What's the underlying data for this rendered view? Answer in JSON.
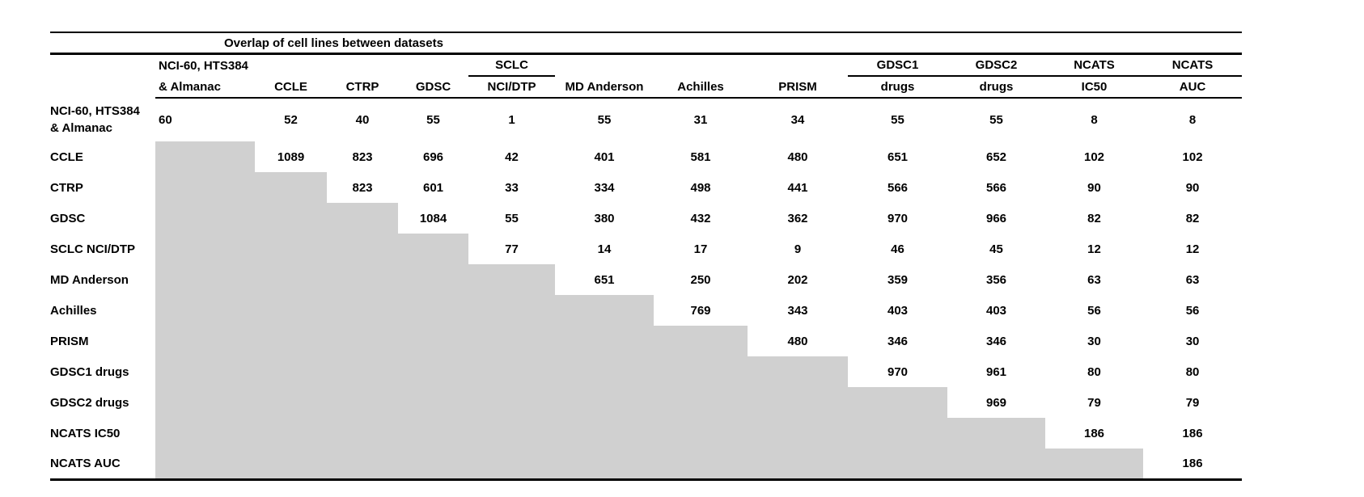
{
  "title": "Overlap of cell lines between datasets",
  "colors": {
    "shade": "#d0d0d0",
    "rule": "#000000",
    "text": "#000000",
    "background": "#ffffff"
  },
  "table": {
    "columns": [
      {
        "id": "nci60-almanac",
        "line1": "NCI-60, HTS384",
        "line2": "& Almanac",
        "underline": false
      },
      {
        "id": "ccle",
        "line1": "",
        "line2": "CCLE",
        "underline": false
      },
      {
        "id": "ctrp",
        "line1": "",
        "line2": "CTRP",
        "underline": false
      },
      {
        "id": "gdsc",
        "line1": "",
        "line2": "GDSC",
        "underline": false
      },
      {
        "id": "sclc-ncidtp",
        "line1": "SCLC",
        "line2": "NCI/DTP",
        "underline": true
      },
      {
        "id": "md-anderson",
        "line1": "",
        "line2": "MD Anderson",
        "underline": false
      },
      {
        "id": "achilles",
        "line1": "",
        "line2": "Achilles",
        "underline": false
      },
      {
        "id": "prism",
        "line1": "",
        "line2": "PRISM",
        "underline": false
      },
      {
        "id": "gdsc1-drugs",
        "line1": "GDSC1",
        "line2": "drugs",
        "underline": true
      },
      {
        "id": "gdsc2-drugs",
        "line1": "GDSC2",
        "line2": "drugs",
        "underline": true
      },
      {
        "id": "ncats-ic50",
        "line1": "NCATS",
        "line2": "IC50",
        "underline": true
      },
      {
        "id": "ncats-auc",
        "line1": "NCATS",
        "line2": "AUC",
        "underline": true
      }
    ],
    "rows": [
      {
        "id": "nci60-almanac",
        "label_lines": [
          "NCI-60, HTS384",
          "& Almanac"
        ],
        "values": [
          60,
          52,
          40,
          55,
          1,
          55,
          31,
          34,
          55,
          55,
          8,
          8
        ]
      },
      {
        "id": "ccle",
        "label_lines": [
          "CCLE"
        ],
        "values": [
          null,
          1089,
          823,
          696,
          42,
          401,
          581,
          480,
          651,
          652,
          102,
          102
        ]
      },
      {
        "id": "ctrp",
        "label_lines": [
          "CTRP"
        ],
        "values": [
          null,
          null,
          823,
          601,
          33,
          334,
          498,
          441,
          566,
          566,
          90,
          90
        ]
      },
      {
        "id": "gdsc",
        "label_lines": [
          "GDSC"
        ],
        "values": [
          null,
          null,
          null,
          1084,
          55,
          380,
          432,
          362,
          970,
          966,
          82,
          82
        ]
      },
      {
        "id": "sclc-ncidtp",
        "label_lines": [
          "SCLC NCI/DTP"
        ],
        "values": [
          null,
          null,
          null,
          null,
          77,
          14,
          17,
          9,
          46,
          45,
          12,
          12
        ]
      },
      {
        "id": "md-anderson",
        "label_lines": [
          "MD Anderson"
        ],
        "values": [
          null,
          null,
          null,
          null,
          null,
          651,
          250,
          202,
          359,
          356,
          63,
          63
        ]
      },
      {
        "id": "achilles",
        "label_lines": [
          "Achilles"
        ],
        "values": [
          null,
          null,
          null,
          null,
          null,
          null,
          769,
          343,
          403,
          403,
          56,
          56
        ]
      },
      {
        "id": "prism",
        "label_lines": [
          "PRISM"
        ],
        "values": [
          null,
          null,
          null,
          null,
          null,
          null,
          null,
          480,
          346,
          346,
          30,
          30
        ]
      },
      {
        "id": "gdsc1-drugs",
        "label_lines": [
          "GDSC1 drugs"
        ],
        "values": [
          null,
          null,
          null,
          null,
          null,
          null,
          null,
          null,
          970,
          961,
          80,
          80
        ]
      },
      {
        "id": "gdsc2-drugs",
        "label_lines": [
          "GDSC2 drugs"
        ],
        "values": [
          null,
          null,
          null,
          null,
          null,
          null,
          null,
          null,
          null,
          969,
          79,
          79
        ]
      },
      {
        "id": "ncats-ic50",
        "label_lines": [
          "NCATS IC50"
        ],
        "values": [
          null,
          null,
          null,
          null,
          null,
          null,
          null,
          null,
          null,
          null,
          186,
          186
        ]
      },
      {
        "id": "ncats-auc",
        "label_lines": [
          "NCATS AUC"
        ],
        "values": [
          null,
          null,
          null,
          null,
          null,
          null,
          null,
          null,
          null,
          null,
          null,
          186
        ]
      }
    ]
  }
}
